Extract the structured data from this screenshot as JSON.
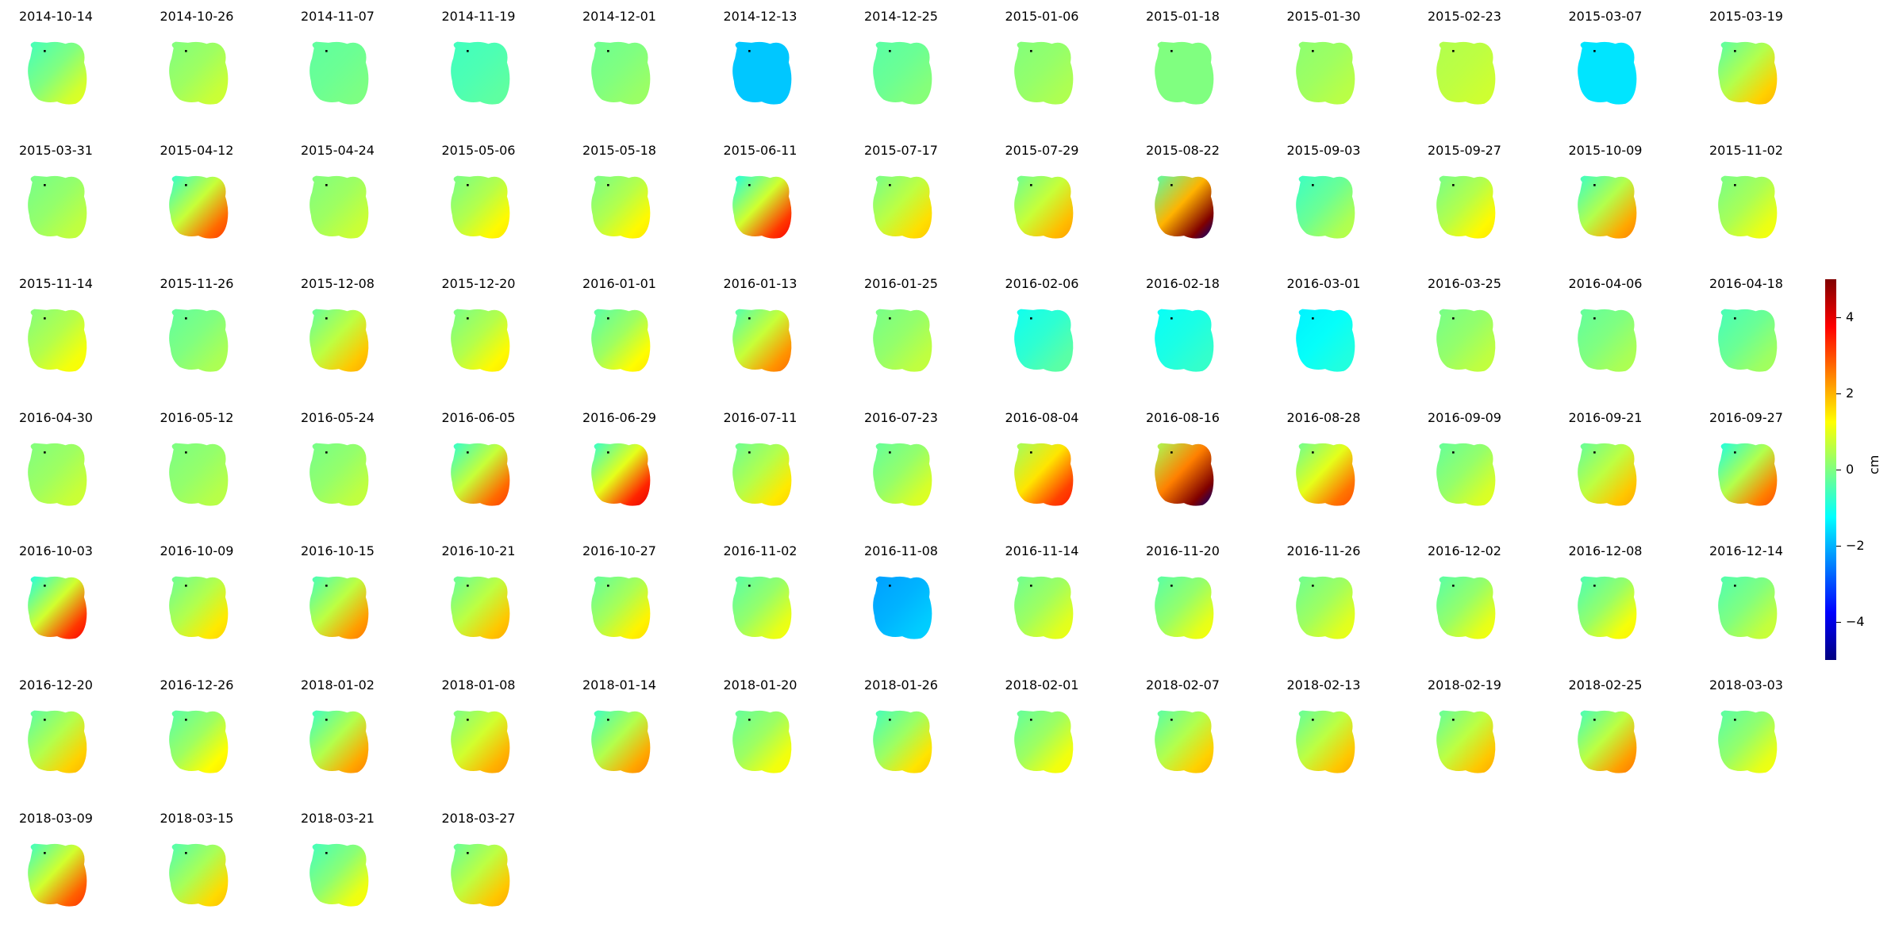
{
  "chart_data": {
    "type": "heatmap",
    "title": "",
    "colormap": "jet",
    "colorbar": {
      "label": "cm",
      "vmin": -5,
      "vmax": 5,
      "ticks": [
        {
          "value": 4,
          "label": "4"
        },
        {
          "value": 2,
          "label": "2"
        },
        {
          "value": 0,
          "label": "0"
        },
        {
          "value": -2,
          "label": "−2"
        },
        {
          "value": -4,
          "label": "−4"
        }
      ],
      "position": "right"
    },
    "layout": {
      "columns": 13,
      "rows": 7
    },
    "panels": [
      {
        "date": "2014-10-14",
        "mean": 0.0,
        "gradient": 1.0
      },
      {
        "date": "2014-10-26",
        "mean": 0.3,
        "gradient": 0.5
      },
      {
        "date": "2014-11-07",
        "mean": -0.2,
        "gradient": 0.2
      },
      {
        "date": "2014-11-19",
        "mean": -0.5,
        "gradient": 0.2
      },
      {
        "date": "2014-12-01",
        "mean": 0.0,
        "gradient": 0.3
      },
      {
        "date": "2014-12-13",
        "mean": -1.8,
        "gradient": 0.0
      },
      {
        "date": "2014-12-25",
        "mean": -0.2,
        "gradient": 0.3
      },
      {
        "date": "2015-01-06",
        "mean": 0.2,
        "gradient": 0.3
      },
      {
        "date": "2015-01-18",
        "mean": 0.0,
        "gradient": 0.0
      },
      {
        "date": "2015-01-30",
        "mean": 0.3,
        "gradient": 0.3
      },
      {
        "date": "2015-02-23",
        "mean": 0.6,
        "gradient": 0.2
      },
      {
        "date": "2015-03-07",
        "mean": -1.5,
        "gradient": 0.0
      },
      {
        "date": "2015-03-19",
        "mean": 0.5,
        "gradient": 1.5
      },
      {
        "date": "2015-03-31",
        "mean": 0.2,
        "gradient": 0.5
      },
      {
        "date": "2015-04-12",
        "mean": 0.7,
        "gradient": 2.5
      },
      {
        "date": "2015-04-24",
        "mean": 0.3,
        "gradient": 0.5
      },
      {
        "date": "2015-05-06",
        "mean": 0.5,
        "gradient": 1.0
      },
      {
        "date": "2015-05-18",
        "mean": 0.5,
        "gradient": 1.0
      },
      {
        "date": "2015-06-11",
        "mean": 0.8,
        "gradient": 3.0
      },
      {
        "date": "2015-07-17",
        "mean": 0.6,
        "gradient": 1.2
      },
      {
        "date": "2015-07-29",
        "mean": 0.7,
        "gradient": 1.5
      },
      {
        "date": "2015-08-22",
        "mean": 2.0,
        "gradient": 4.0,
        "dip": true
      },
      {
        "date": "2015-09-03",
        "mean": -0.2,
        "gradient": 0.8
      },
      {
        "date": "2015-09-27",
        "mean": 0.5,
        "gradient": 1.0
      },
      {
        "date": "2015-10-09",
        "mean": 0.5,
        "gradient": 2.0
      },
      {
        "date": "2015-11-02",
        "mean": 0.4,
        "gradient": 0.8
      },
      {
        "date": "2015-11-14",
        "mean": 0.5,
        "gradient": 0.8
      },
      {
        "date": "2015-11-26",
        "mean": 0.0,
        "gradient": 0.5
      },
      {
        "date": "2015-12-08",
        "mean": 0.6,
        "gradient": 1.5
      },
      {
        "date": "2015-12-20",
        "mean": 0.5,
        "gradient": 1.0
      },
      {
        "date": "2016-01-01",
        "mean": 0.3,
        "gradient": 1.2
      },
      {
        "date": "2016-01-13",
        "mean": 0.7,
        "gradient": 2.0
      },
      {
        "date": "2016-01-25",
        "mean": 0.2,
        "gradient": 0.5
      },
      {
        "date": "2016-02-06",
        "mean": -0.8,
        "gradient": 0.5
      },
      {
        "date": "2016-02-18",
        "mean": -1.0,
        "gradient": 0.3
      },
      {
        "date": "2016-03-01",
        "mean": -1.2,
        "gradient": 0.3
      },
      {
        "date": "2016-03-25",
        "mean": 0.2,
        "gradient": 0.5
      },
      {
        "date": "2016-04-06",
        "mean": 0.0,
        "gradient": 0.5
      },
      {
        "date": "2016-04-18",
        "mean": -0.2,
        "gradient": 0.6
      },
      {
        "date": "2016-04-30",
        "mean": 0.3,
        "gradient": 0.5
      },
      {
        "date": "2016-05-12",
        "mean": 0.2,
        "gradient": 0.4
      },
      {
        "date": "2016-05-24",
        "mean": 0.2,
        "gradient": 0.5
      },
      {
        "date": "2016-06-05",
        "mean": 0.7,
        "gradient": 2.5
      },
      {
        "date": "2016-06-29",
        "mean": 1.0,
        "gradient": 3.0
      },
      {
        "date": "2016-07-11",
        "mean": 0.5,
        "gradient": 1.2
      },
      {
        "date": "2016-07-23",
        "mean": 0.2,
        "gradient": 0.8
      },
      {
        "date": "2016-08-04",
        "mean": 1.5,
        "gradient": 2.0
      },
      {
        "date": "2016-08-16",
        "mean": 2.5,
        "gradient": 3.5,
        "dip": true
      },
      {
        "date": "2016-08-28",
        "mean": 1.0,
        "gradient": 2.0
      },
      {
        "date": "2016-09-09",
        "mean": 0.2,
        "gradient": 0.8
      },
      {
        "date": "2016-09-21",
        "mean": 0.6,
        "gradient": 1.5
      },
      {
        "date": "2016-09-27",
        "mean": 0.5,
        "gradient": 2.5
      },
      {
        "date": "2016-10-03",
        "mean": 0.8,
        "gradient": 3.0
      },
      {
        "date": "2016-10-09",
        "mean": 0.5,
        "gradient": 1.2
      },
      {
        "date": "2016-10-15",
        "mean": 0.6,
        "gradient": 2.0
      },
      {
        "date": "2016-10-21",
        "mean": 0.6,
        "gradient": 1.5
      },
      {
        "date": "2016-10-27",
        "mean": 0.4,
        "gradient": 1.2
      },
      {
        "date": "2016-11-02",
        "mean": 0.2,
        "gradient": 1.0
      },
      {
        "date": "2016-11-08",
        "mean": -2.0,
        "gradient": 0.3
      },
      {
        "date": "2016-11-14",
        "mean": 0.3,
        "gradient": 0.8
      },
      {
        "date": "2016-11-20",
        "mean": 0.2,
        "gradient": 1.0
      },
      {
        "date": "2016-11-26",
        "mean": 0.3,
        "gradient": 0.8
      },
      {
        "date": "2016-12-02",
        "mean": 0.2,
        "gradient": 1.0
      },
      {
        "date": "2016-12-08",
        "mean": 0.2,
        "gradient": 1.2
      },
      {
        "date": "2016-12-14",
        "mean": 0.0,
        "gradient": 0.8
      },
      {
        "date": "2016-12-20",
        "mean": 0.5,
        "gradient": 1.5
      },
      {
        "date": "2016-12-26",
        "mean": 0.3,
        "gradient": 1.2
      },
      {
        "date": "2018-01-02",
        "mean": 0.5,
        "gradient": 2.0
      },
      {
        "date": "2018-01-08",
        "mean": 0.8,
        "gradient": 1.5
      },
      {
        "date": "2018-01-14",
        "mean": 0.5,
        "gradient": 2.0
      },
      {
        "date": "2018-01-20",
        "mean": 0.3,
        "gradient": 1.0
      },
      {
        "date": "2018-01-26",
        "mean": 0.3,
        "gradient": 1.5
      },
      {
        "date": "2018-02-01",
        "mean": 0.3,
        "gradient": 1.0
      },
      {
        "date": "2018-02-07",
        "mean": 0.5,
        "gradient": 1.5
      },
      {
        "date": "2018-02-13",
        "mean": 0.6,
        "gradient": 1.5
      },
      {
        "date": "2018-02-19",
        "mean": 0.6,
        "gradient": 1.5
      },
      {
        "date": "2018-02-25",
        "mean": 0.6,
        "gradient": 2.0
      },
      {
        "date": "2018-03-03",
        "mean": 0.2,
        "gradient": 1.0
      },
      {
        "date": "2018-03-09",
        "mean": 0.8,
        "gradient": 2.5
      },
      {
        "date": "2018-03-15",
        "mean": 0.4,
        "gradient": 1.5
      },
      {
        "date": "2018-03-21",
        "mean": 0.1,
        "gradient": 1.2
      },
      {
        "date": "2018-03-27",
        "mean": 0.6,
        "gradient": 1.5
      }
    ]
  }
}
